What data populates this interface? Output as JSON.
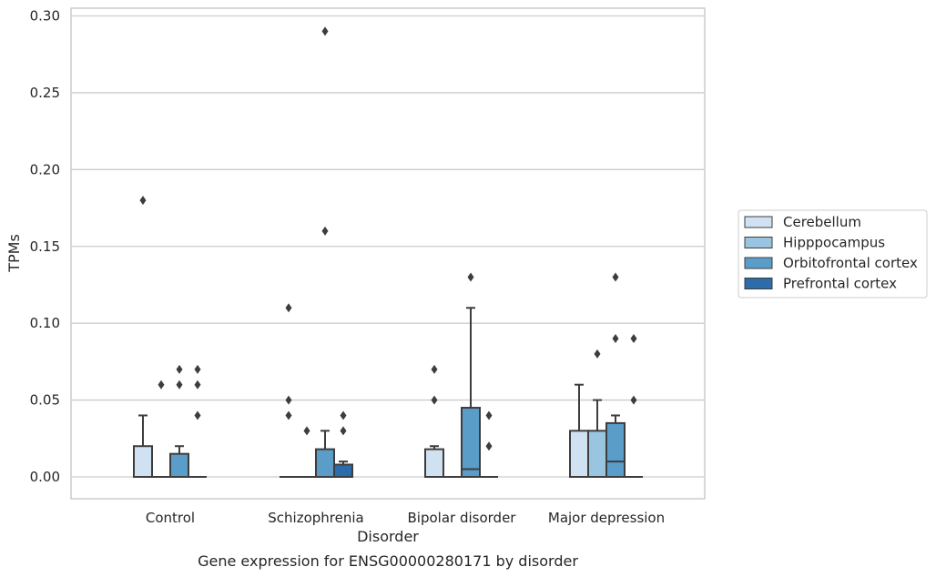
{
  "chart_data": {
    "type": "box",
    "title": "Gene expression for ENSG00000280171 by disorder",
    "xlabel": "Disorder",
    "ylabel": "TPMs",
    "ylim": [
      -0.014,
      0.305
    ],
    "y_ticks": [
      "0.00",
      "0.05",
      "0.10",
      "0.15",
      "0.20",
      "0.25",
      "0.30"
    ],
    "grid": true,
    "legend_position": "right",
    "categories": [
      "Control",
      "Schizophrenia",
      "Bipolar disorder",
      "Major depression"
    ],
    "series": [
      {
        "name": "Cerebellum",
        "color": "#d0e1f2",
        "boxes": [
          {
            "q1": 0.0,
            "median": 0.0,
            "q3": 0.02,
            "whisker_low": 0.0,
            "whisker_high": 0.04,
            "outliers": [
              0.18
            ]
          },
          {
            "q1": 0.0,
            "median": 0.0,
            "q3": 0.0,
            "whisker_low": 0.0,
            "whisker_high": 0.0,
            "outliers": [
              0.11,
              0.05,
              0.04
            ]
          },
          {
            "q1": 0.0,
            "median": 0.0,
            "q3": 0.018,
            "whisker_low": 0.0,
            "whisker_high": 0.02,
            "outliers": [
              0.07,
              0.05
            ]
          },
          {
            "q1": 0.0,
            "median": 0.0,
            "q3": 0.03,
            "whisker_low": 0.0,
            "whisker_high": 0.06,
            "outliers": []
          }
        ]
      },
      {
        "name": "Hipppocampus",
        "color": "#9ac5e0",
        "boxes": [
          {
            "q1": 0.0,
            "median": 0.0,
            "q3": 0.0,
            "whisker_low": 0.0,
            "whisker_high": 0.0,
            "outliers": [
              0.06
            ]
          },
          {
            "q1": 0.0,
            "median": 0.0,
            "q3": 0.0,
            "whisker_low": 0.0,
            "whisker_high": 0.0,
            "outliers": [
              0.03
            ]
          },
          {
            "q1": 0.0,
            "median": 0.0,
            "q3": 0.0,
            "whisker_low": 0.0,
            "whisker_high": 0.0,
            "outliers": []
          },
          {
            "q1": 0.0,
            "median": 0.0,
            "q3": 0.03,
            "whisker_low": 0.0,
            "whisker_high": 0.05,
            "outliers": [
              0.08
            ]
          }
        ]
      },
      {
        "name": "Orbitofrontal cortex",
        "color": "#5a9dc9",
        "boxes": [
          {
            "q1": 0.0,
            "median": 0.0,
            "q3": 0.015,
            "whisker_low": 0.0,
            "whisker_high": 0.02,
            "outliers": [
              0.07,
              0.06
            ]
          },
          {
            "q1": 0.0,
            "median": 0.0,
            "q3": 0.018,
            "whisker_low": 0.0,
            "whisker_high": 0.03,
            "outliers": [
              0.29,
              0.16
            ]
          },
          {
            "q1": 0.0,
            "median": 0.005,
            "q3": 0.045,
            "whisker_low": 0.0,
            "whisker_high": 0.11,
            "outliers": [
              0.13
            ]
          },
          {
            "q1": 0.0,
            "median": 0.01,
            "q3": 0.035,
            "whisker_low": 0.0,
            "whisker_high": 0.04,
            "outliers": [
              0.13,
              0.09
            ]
          }
        ]
      },
      {
        "name": "Prefrontal cortex",
        "color": "#2b6ca9",
        "boxes": [
          {
            "q1": 0.0,
            "median": 0.0,
            "q3": 0.0,
            "whisker_low": 0.0,
            "whisker_high": 0.0,
            "outliers": [
              0.07,
              0.06,
              0.04
            ]
          },
          {
            "q1": 0.0,
            "median": 0.0,
            "q3": 0.008,
            "whisker_low": 0.0,
            "whisker_high": 0.01,
            "outliers": [
              0.04,
              0.03
            ]
          },
          {
            "q1": 0.0,
            "median": 0.0,
            "q3": 0.0,
            "whisker_low": 0.0,
            "whisker_high": 0.0,
            "outliers": [
              0.04,
              0.02
            ]
          },
          {
            "q1": 0.0,
            "median": 0.0,
            "q3": 0.0,
            "whisker_low": 0.0,
            "whisker_high": 0.0,
            "outliers": [
              0.09,
              0.05
            ]
          }
        ]
      }
    ]
  }
}
